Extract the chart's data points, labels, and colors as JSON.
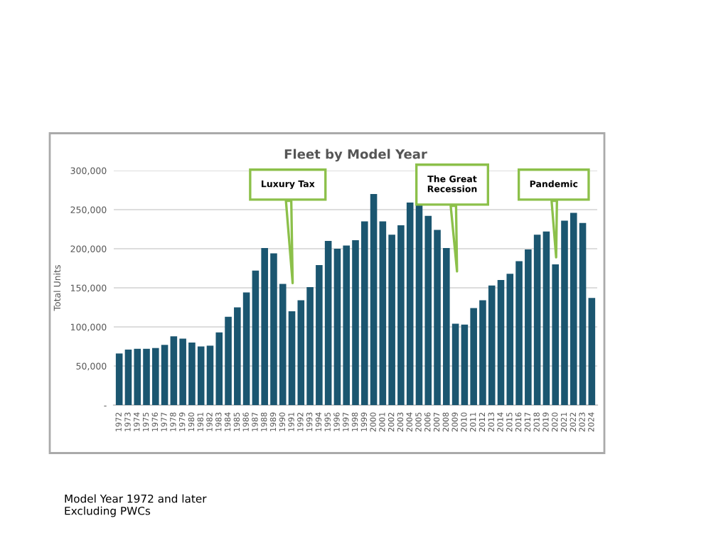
{
  "chart_data": {
    "type": "bar",
    "title": "Fleet by Model Year",
    "ylabel": "Total Units",
    "categories": [
      "1972",
      "1973",
      "1974",
      "1975",
      "1976",
      "1977",
      "1978",
      "1979",
      "1980",
      "1981",
      "1982",
      "1983",
      "1984",
      "1985",
      "1986",
      "1987",
      "1988",
      "1989",
      "1990",
      "1991",
      "1992",
      "1993",
      "1994",
      "1995",
      "1996",
      "1997",
      "1998",
      "1999",
      "2000",
      "2001",
      "2002",
      "2003",
      "2004",
      "2005",
      "2006",
      "2007",
      "2008",
      "2009",
      "2010",
      "2011",
      "2012",
      "2013",
      "2014",
      "2015",
      "2016",
      "2017",
      "2018",
      "2019",
      "2020",
      "2021",
      "2022",
      "2023",
      "2024"
    ],
    "values": [
      66000,
      71000,
      72000,
      72000,
      73000,
      77000,
      88000,
      85000,
      80000,
      75000,
      76000,
      93000,
      113000,
      125000,
      144000,
      172000,
      201000,
      194000,
      155000,
      120000,
      134000,
      151000,
      179000,
      210000,
      200000,
      204000,
      211000,
      235000,
      270000,
      235000,
      218000,
      230000,
      259000,
      256000,
      242000,
      224000,
      201000,
      104000,
      103000,
      124000,
      134000,
      153000,
      160000,
      168000,
      184000,
      199000,
      218000,
      222000,
      180000,
      236000,
      246000,
      233000,
      137000
    ],
    "color": "#1b5670",
    "ylim": [
      0,
      300000
    ],
    "yticks": [
      {
        "value": 0,
        "label": "-"
      },
      {
        "value": 50000,
        "label": "50,000"
      },
      {
        "value": 100000,
        "label": "100,000"
      },
      {
        "value": 150000,
        "label": "150,000"
      },
      {
        "value": 200000,
        "label": "200,000"
      },
      {
        "value": 250000,
        "label": "250,000"
      },
      {
        "value": 300000,
        "label": "300,000"
      }
    ],
    "grid": "y",
    "legend": false,
    "annotations": [
      "Luxury Tax",
      "The Great\nRecession",
      "Pandemic",
      "Model Year 1972 and later\nExcluding PWCs"
    ]
  }
}
